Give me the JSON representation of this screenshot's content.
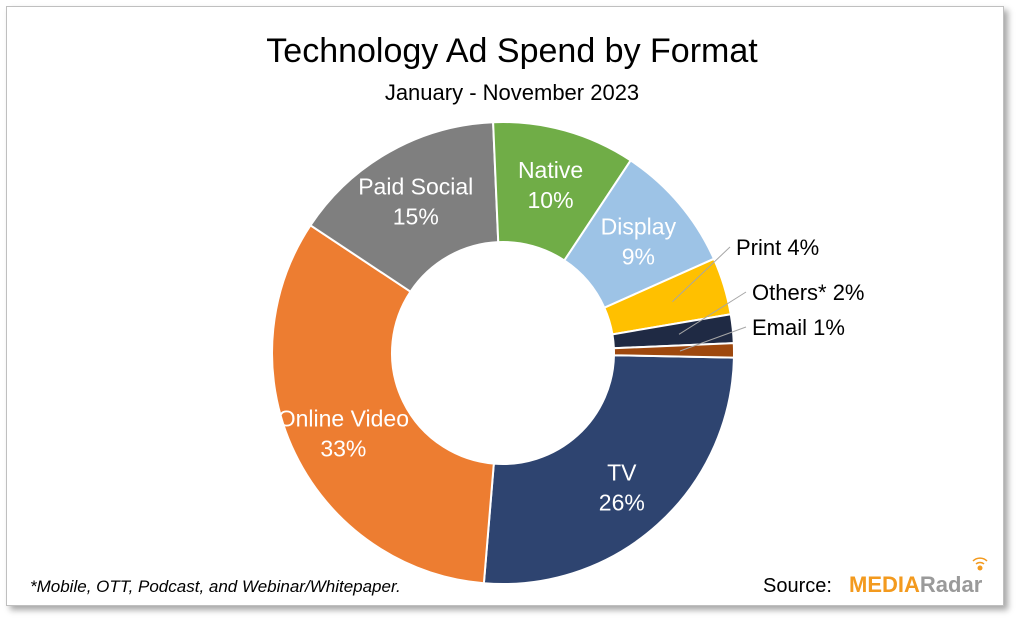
{
  "chart_data": {
    "type": "pie",
    "title": "Technology Ad Spend by Format",
    "subtitle": "January - November 2023",
    "unit": "%",
    "slices": [
      {
        "label": "TV",
        "value": 26,
        "display": "26%",
        "color": "#2e4470",
        "label_color": "#ffffff",
        "label_style": "inside"
      },
      {
        "label": "Online Video",
        "value": 33,
        "display": "33%",
        "color": "#ed7d31",
        "label_color": "#ffffff",
        "label_style": "inside"
      },
      {
        "label": "Paid Social",
        "value": 15,
        "display": "15%",
        "color": "#7f7f7f",
        "label_color": "#ffffff",
        "label_style": "inside"
      },
      {
        "label": "Native",
        "value": 10,
        "display": "10%",
        "color": "#70ad47",
        "label_color": "#ffffff",
        "label_style": "inside"
      },
      {
        "label": "Display",
        "value": 9,
        "display": "9%",
        "color": "#9dc3e6",
        "label_color": "#ffffff",
        "label_style": "inside"
      },
      {
        "label": "Print",
        "value": 4,
        "display": "Print 4%",
        "color": "#ffc000",
        "label_color": "#000000",
        "label_style": "outside"
      },
      {
        "label": "Others*",
        "value": 2,
        "display": "Others* 2%",
        "color": "#1f2a44",
        "label_color": "#000000",
        "label_style": "outside"
      },
      {
        "label": "Email",
        "value": 1,
        "display": "Email 1%",
        "color": "#9e480e",
        "label_color": "#000000",
        "label_style": "outside"
      }
    ]
  },
  "footnote": "*Mobile, OTT, Podcast, and Webinar/Whitepaper.",
  "source_label": "Source:",
  "brand": {
    "part1": "MEDIA",
    "part2": "Radar"
  }
}
